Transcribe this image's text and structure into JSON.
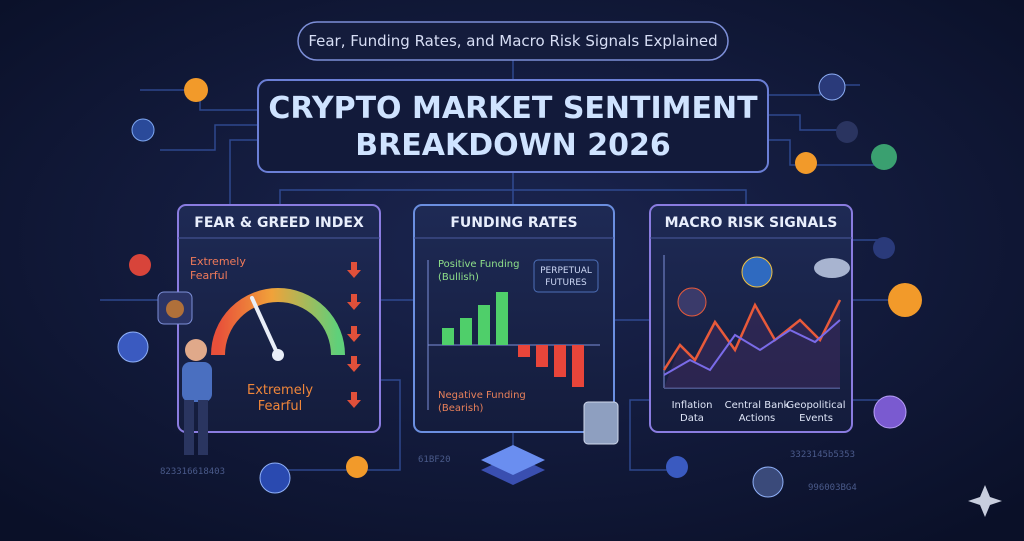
{
  "header": {
    "subtitle": "Fear, Funding Rates, and Macro Risk Signals Explained",
    "title_lines": [
      "CRYPTO MARKET SENTIMENT",
      "BREAKDOWN 2026"
    ]
  },
  "panels": [
    {
      "title": "FEAR & GREED INDEX",
      "side_label": [
        "Extremely",
        "Fearful"
      ],
      "gauge_label": [
        "Extremely",
        "Fearful"
      ]
    },
    {
      "title": "FUNDING RATES",
      "positive": [
        "Positive Funding",
        "(Bullish)"
      ],
      "badge": [
        "PERPETUAL",
        "FUTURES"
      ],
      "negative": [
        "Negative Funding",
        "(Bearish)"
      ]
    },
    {
      "title": "MACRO RISK SIGNALS",
      "labels": [
        [
          "Inflation",
          "Data"
        ],
        [
          "Central Bank",
          "Actions"
        ],
        [
          "Geopolitical",
          "Events"
        ]
      ]
    }
  ],
  "codes": [
    "823316618403",
    "61BF20",
    "3323145b5353",
    "996003BG4"
  ]
}
